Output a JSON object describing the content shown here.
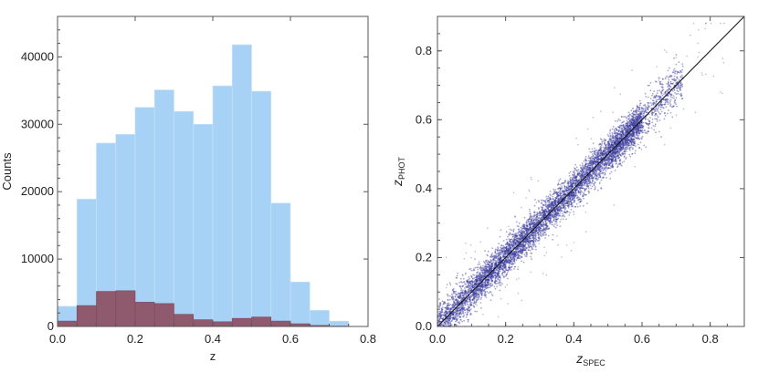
{
  "chart_data": [
    {
      "type": "bar",
      "title": "",
      "xlabel": "z",
      "ylabel": "Counts",
      "xlim": [
        0.0,
        0.8
      ],
      "ylim": [
        0,
        46000
      ],
      "bin_width": 0.05,
      "bin_starts": [
        0.0,
        0.05,
        0.1,
        0.15,
        0.2,
        0.25,
        0.3,
        0.35,
        0.4,
        0.45,
        0.5,
        0.55,
        0.6,
        0.65,
        0.7
      ],
      "x_ticks": [
        0.0,
        0.2,
        0.4,
        0.6,
        0.8
      ],
      "x_tick_labels": [
        "0.0",
        "0.2",
        "0.4",
        "0.6",
        "0.8"
      ],
      "y_ticks": [
        0,
        10000,
        20000,
        30000,
        40000
      ],
      "y_tick_labels": [
        "0",
        "10000",
        "20000",
        "30000",
        "40000"
      ],
      "series": [
        {
          "color": "#a8d2f5",
          "values": [
            3000,
            18900,
            27200,
            28500,
            32500,
            35100,
            31900,
            30000,
            35700,
            41800,
            34900,
            18300,
            6600,
            2400,
            800
          ]
        },
        {
          "color": "#8f5a6e",
          "values": [
            800,
            3100,
            5200,
            5300,
            3600,
            3400,
            1800,
            1000,
            700,
            1200,
            1400,
            800,
            400,
            150,
            50
          ]
        }
      ]
    },
    {
      "type": "scatter",
      "title": "",
      "xlabel_main": "z",
      "xlabel_sub": "SPEC",
      "ylabel_main": "z",
      "ylabel_sub": "PHOT",
      "xlim": [
        0.0,
        0.9
      ],
      "ylim": [
        0.0,
        0.9
      ],
      "x_ticks": [
        0.0,
        0.2,
        0.4,
        0.6,
        0.8
      ],
      "x_tick_labels": [
        "0.0",
        "0.2",
        "0.4",
        "0.6",
        "0.8"
      ],
      "y_ticks": [
        0.0,
        0.2,
        0.4,
        0.6,
        0.8
      ],
      "y_tick_labels": [
        "0.0",
        "0.2",
        "0.4",
        "0.6",
        "0.8"
      ],
      "reference_line": [
        [
          0.0,
          0.0
        ],
        [
          0.9,
          0.9
        ]
      ],
      "point_color": "#3b3b9e",
      "density_ranges": [
        {
          "x": [
            0.0,
            0.1
          ],
          "y_center_offset": 0.0,
          "scatter": 0.03,
          "weight": 1.0
        },
        {
          "x": [
            0.1,
            0.3
          ],
          "y_center_offset": 0.0,
          "scatter": 0.025,
          "weight": 2.5
        },
        {
          "x": [
            0.3,
            0.5
          ],
          "y_center_offset": 0.0,
          "scatter": 0.025,
          "weight": 2.3
        },
        {
          "x": [
            0.5,
            0.6
          ],
          "y_center_offset": 0.0,
          "scatter": 0.025,
          "weight": 1.6
        },
        {
          "x": [
            0.6,
            0.72
          ],
          "y_center_offset": 0.0,
          "scatter": 0.03,
          "weight": 0.5
        }
      ]
    }
  ]
}
